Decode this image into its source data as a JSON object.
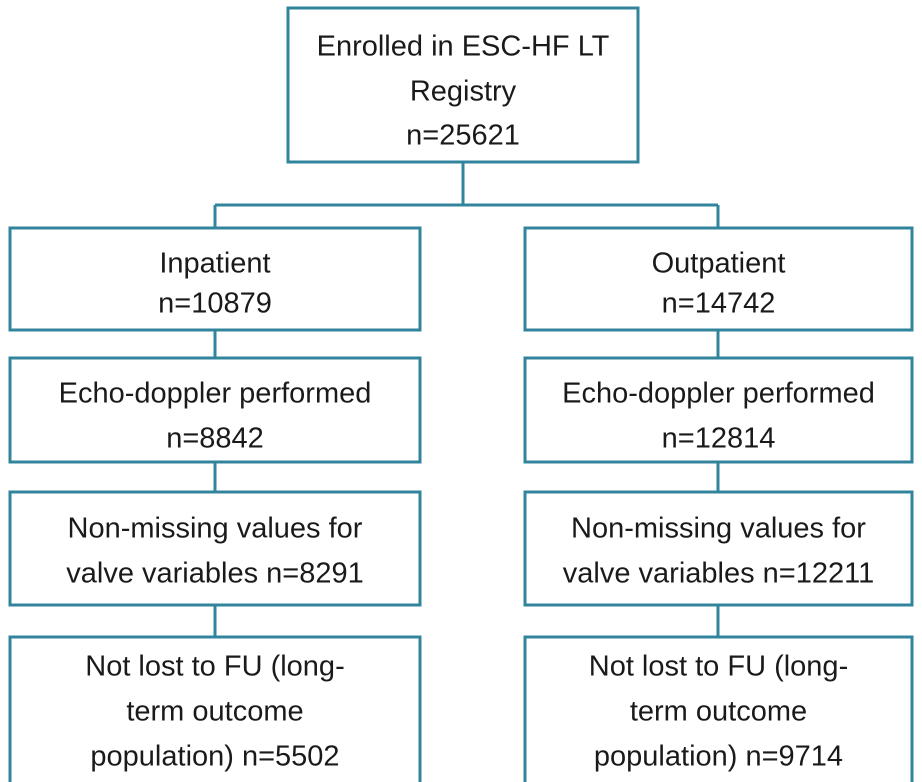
{
  "nodes": [
    {
      "lines": [
        "Enrolled in ESC-HF LT",
        "Registry",
        "n=25621"
      ]
    },
    {
      "lines": [
        "Inpatient",
        "n=10879"
      ]
    },
    {
      "lines": [
        "Echo-doppler performed",
        "n=8842"
      ]
    },
    {
      "lines": [
        "Non-missing values for",
        "valve variables n=8291"
      ]
    },
    {
      "lines": [
        "Not lost to FU (long-",
        "term outcome",
        "population) n=5502"
      ]
    },
    {
      "lines": [
        "Outpatient",
        "n=14742"
      ]
    },
    {
      "lines": [
        "Echo-doppler performed",
        "n=12814"
      ]
    },
    {
      "lines": [
        "Non-missing values for",
        "valve variables n=12211"
      ]
    },
    {
      "lines": [
        "Not lost to FU (long-",
        "term outcome",
        "population) n=9714"
      ]
    }
  ]
}
